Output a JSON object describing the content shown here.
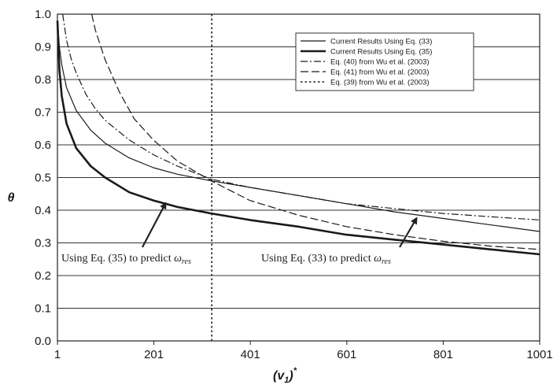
{
  "chart_data": {
    "type": "line",
    "title": "",
    "xlabel": "(v₁)*",
    "xlabel_main": "(v",
    "xlabel_sub": "1",
    "xlabel_tail": ")",
    "xlabel_sup": "*",
    "ylabel": "θ",
    "xlim": [
      1,
      1001
    ],
    "ylim": [
      0,
      1
    ],
    "x_ticks": [
      "1",
      "201",
      "401",
      "601",
      "801",
      "1001"
    ],
    "y_ticks": [
      "0.0",
      "0.1",
      "0.2",
      "0.3",
      "0.4",
      "0.5",
      "0.6",
      "0.7",
      "0.8",
      "0.9",
      "1.0"
    ],
    "grid": "horizontal",
    "legend_position": "top-right",
    "series": [
      {
        "name": "Current Results Using Eq. (33)",
        "style": "solid-thin",
        "x": [
          1,
          5,
          10,
          20,
          40,
          70,
          100,
          150,
          200,
          250,
          320,
          400,
          500,
          600,
          700,
          800,
          900,
          1001
        ],
        "y": [
          0.98,
          0.9,
          0.845,
          0.775,
          0.705,
          0.645,
          0.605,
          0.56,
          0.53,
          0.51,
          0.49,
          0.47,
          0.445,
          0.42,
          0.395,
          0.375,
          0.355,
          0.335
        ]
      },
      {
        "name": "Current Results Using Eq. (35)",
        "style": "solid-thick",
        "x": [
          1,
          5,
          10,
          20,
          40,
          70,
          100,
          150,
          200,
          250,
          320,
          400,
          500,
          600,
          700,
          800,
          900,
          1001
        ],
        "y": [
          0.98,
          0.83,
          0.75,
          0.665,
          0.59,
          0.535,
          0.5,
          0.455,
          0.43,
          0.41,
          0.39,
          0.37,
          0.35,
          0.325,
          0.31,
          0.295,
          0.28,
          0.265
        ]
      },
      {
        "name": "Eq. (40)  from Wu et al. (2003)",
        "style": "dash-dot",
        "x": [
          12,
          20,
          30,
          40,
          60,
          80,
          100,
          150,
          200,
          250,
          320,
          400,
          500,
          600,
          700,
          800,
          900,
          1001
        ],
        "y": [
          1.0,
          0.92,
          0.86,
          0.82,
          0.755,
          0.71,
          0.675,
          0.615,
          0.57,
          0.535,
          0.495,
          0.47,
          0.445,
          0.42,
          0.405,
          0.39,
          0.38,
          0.37
        ]
      },
      {
        "name": "Eq. (41) from Wu et al. (2003)",
        "style": "dashed",
        "x": [
          72,
          80,
          100,
          130,
          160,
          200,
          250,
          320,
          400,
          500,
          600,
          700,
          800,
          900,
          1001
        ],
        "y": [
          1.0,
          0.95,
          0.86,
          0.76,
          0.68,
          0.615,
          0.55,
          0.49,
          0.43,
          0.385,
          0.35,
          0.325,
          0.305,
          0.29,
          0.28
        ]
      },
      {
        "name": "Eq. (39) from Wu et al. (2003)",
        "style": "dotted",
        "x": [
          321,
          321
        ],
        "y": [
          0,
          1
        ]
      }
    ],
    "annotations": [
      {
        "text_main": "Using Eq. (35) to predict ",
        "symbol": "ω",
        "sub": "res",
        "arrow_to": [
          239,
          0.41
        ]
      },
      {
        "text_main": "Using Eq. (33) to predict ",
        "symbol": "ω",
        "sub": "res",
        "arrow_to": [
          785,
          0.385
        ]
      }
    ]
  }
}
